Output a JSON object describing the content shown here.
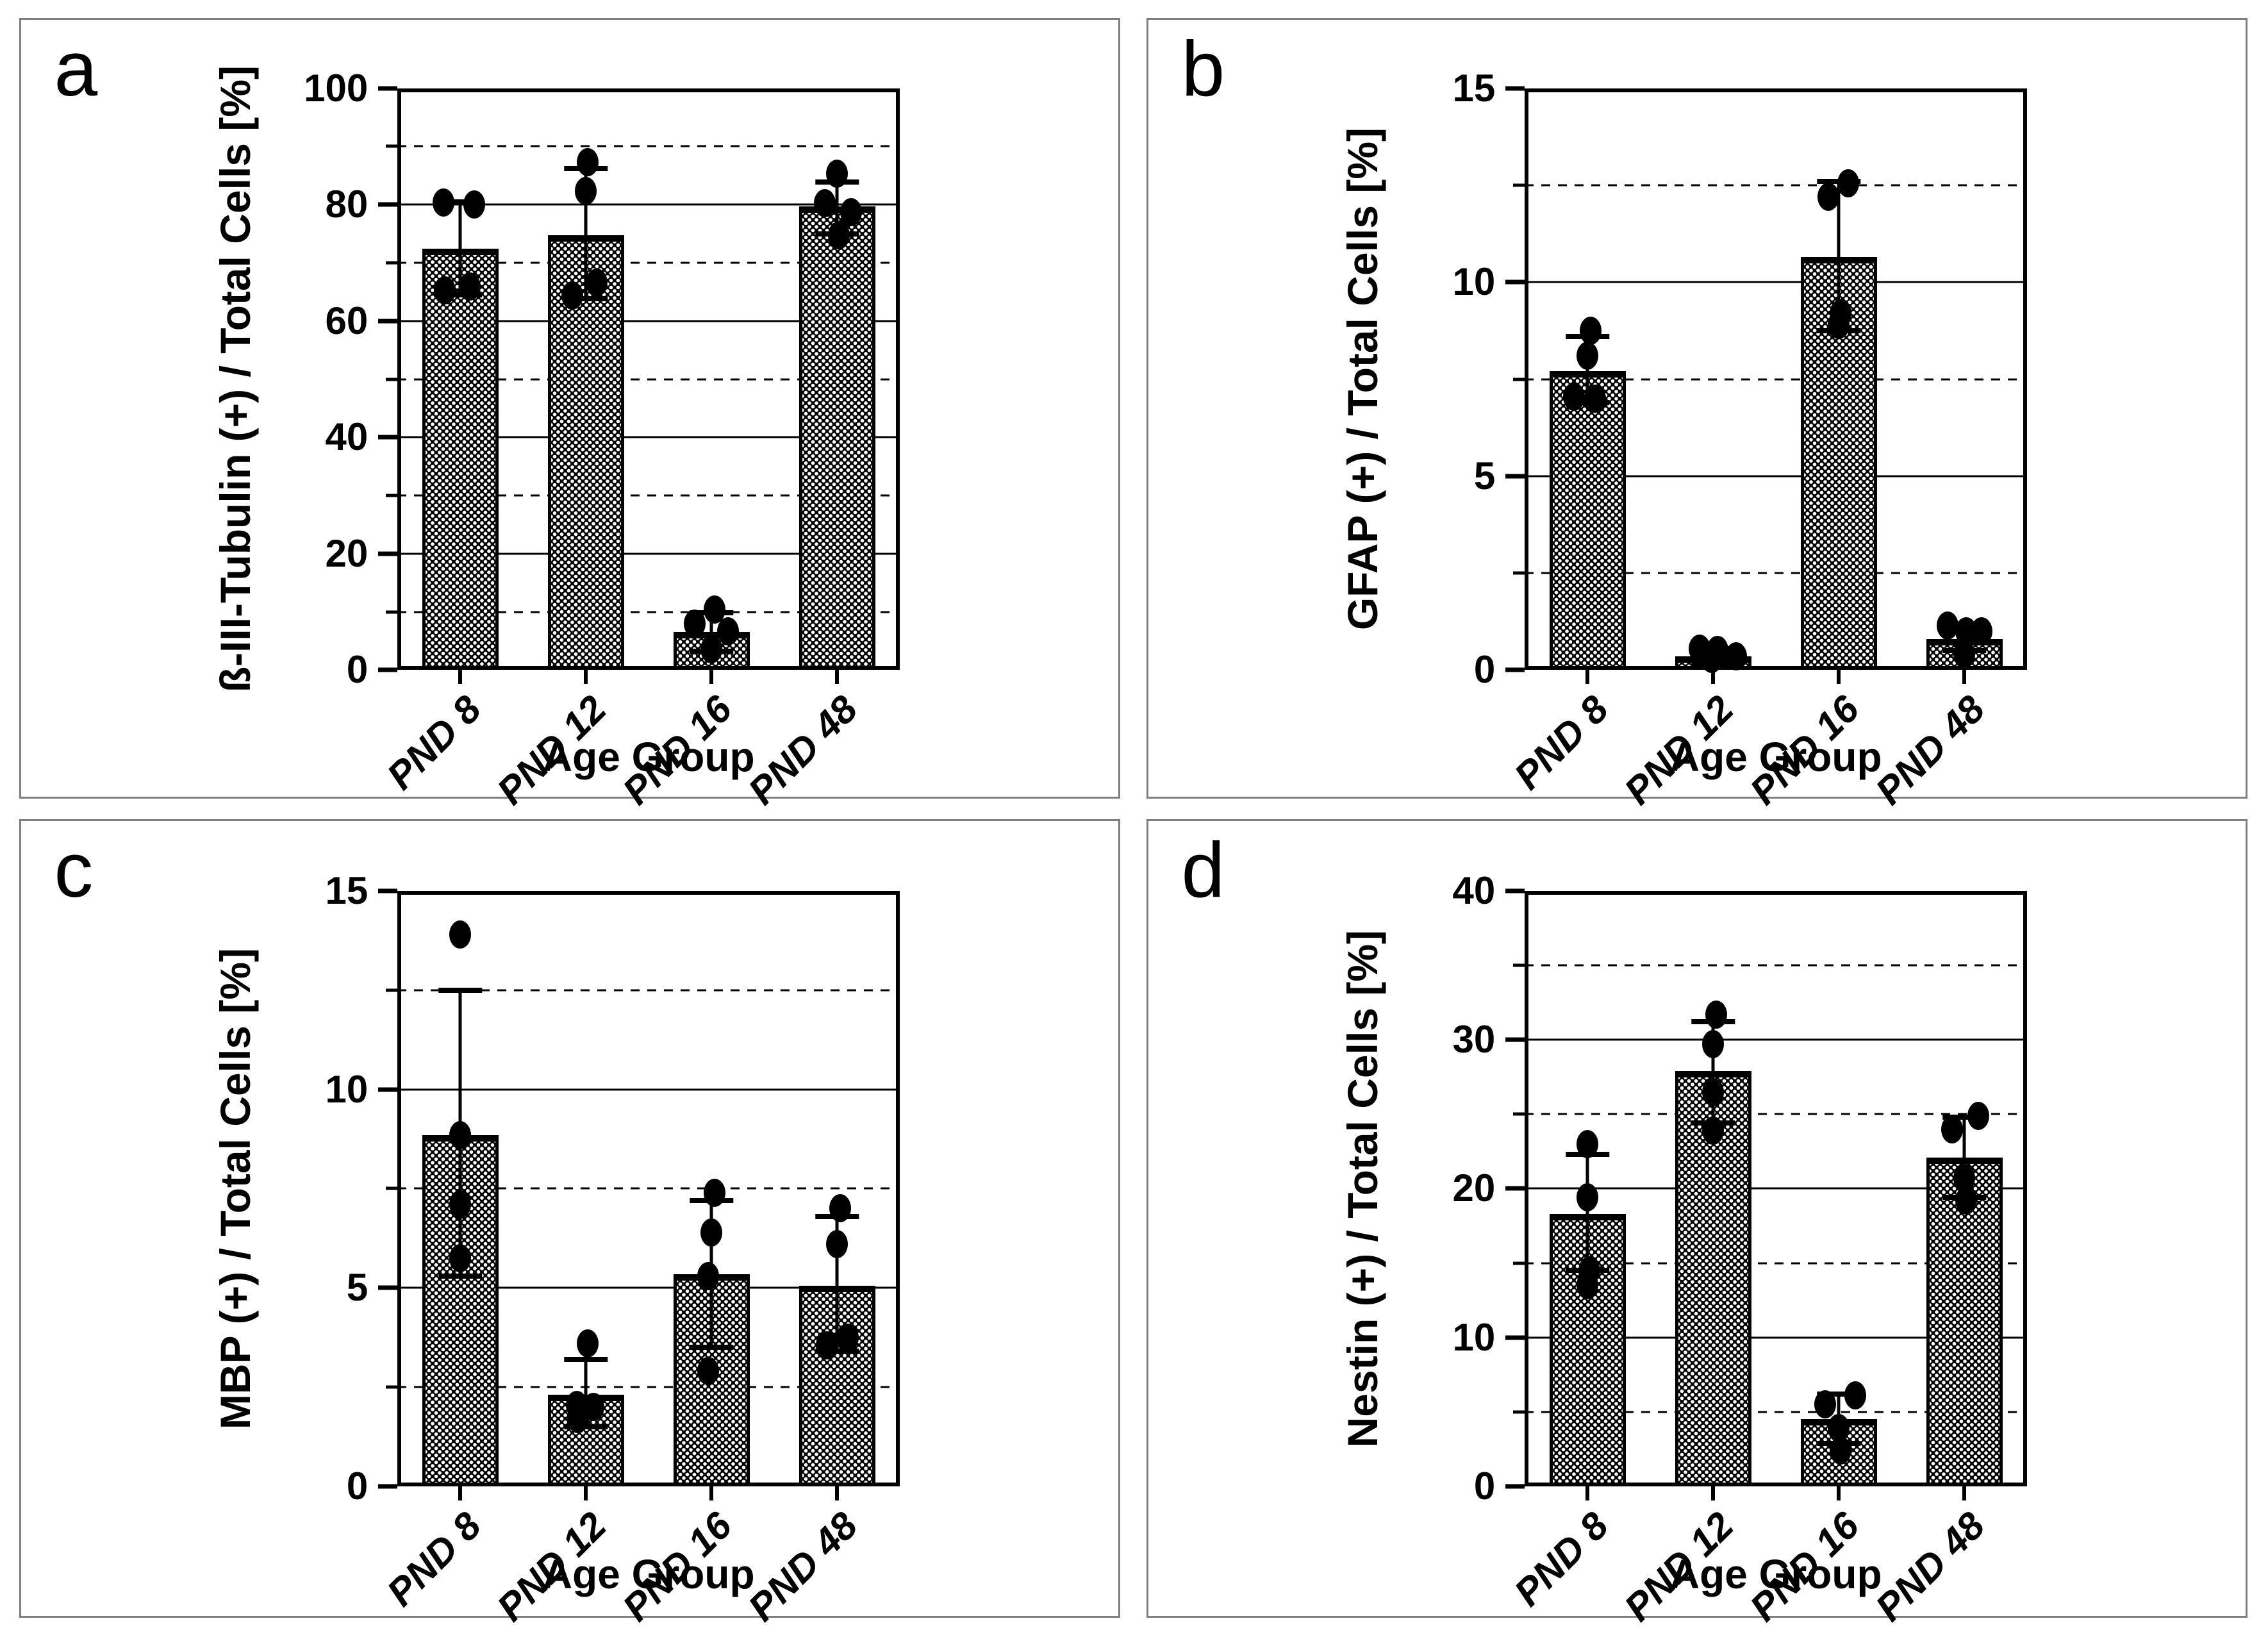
{
  "styles": {
    "bar_fill": "#000000",
    "bar_dot": "#ffffff",
    "axis_color": "#000000",
    "panel_border": "#7f7f7f"
  },
  "chart_data": [
    {
      "type": "bar",
      "letter": "a",
      "ylabel": "ß-III-Tubulin (+) / Total Cells [%]",
      "xlabel": "Age Group",
      "categories": [
        "PND 8",
        "PND 12",
        "PND 16",
        "PND 48"
      ],
      "ylim": [
        0,
        100
      ],
      "ymajor": 20,
      "yminor": 10,
      "grid": "major-solid minor-dashed",
      "legend": "none",
      "bars": [
        {
          "label": "PND 8",
          "mean": 72.4,
          "err": [
            64.5,
            80.5
          ],
          "points": [
            [
              80.3,
              -0.22
            ],
            [
              80.0,
              0.18
            ],
            [
              65.9,
              0.12
            ],
            [
              65.3,
              -0.2
            ]
          ]
        },
        {
          "label": "PND 12",
          "mean": 74.7,
          "err": [
            63.8,
            86.2
          ],
          "points": [
            [
              87.3,
              0.02
            ],
            [
              82.3,
              0.0
            ],
            [
              66.6,
              0.14
            ],
            [
              64.4,
              -0.18
            ]
          ]
        },
        {
          "label": "PND 16",
          "mean": 6.5,
          "err": [
            3.2,
            9.9
          ],
          "points": [
            [
              10.4,
              0.04
            ],
            [
              8.0,
              -0.22
            ],
            [
              6.7,
              0.22
            ],
            [
              3.6,
              0.0
            ]
          ]
        },
        {
          "label": "PND 48",
          "mean": 79.7,
          "err": [
            75.0,
            83.9
          ],
          "points": [
            [
              85.3,
              0.0
            ],
            [
              80.2,
              -0.16
            ],
            [
              78.7,
              0.18
            ],
            [
              74.7,
              0.02
            ]
          ]
        }
      ]
    },
    {
      "type": "bar",
      "letter": "b",
      "ylabel": "GFAP (+) / Total Cells [%]",
      "xlabel": "Age Group",
      "categories": [
        "PND 8",
        "PND 12",
        "PND 16",
        "PND 48"
      ],
      "ylim": [
        0,
        15
      ],
      "ymajor": 5,
      "yminor": 2.5,
      "grid": "major-solid minor-dashed",
      "legend": "none",
      "bars": [
        {
          "label": "PND 8",
          "mean": 7.7,
          "err": [
            6.9,
            8.6
          ],
          "points": [
            [
              8.75,
              0.04
            ],
            [
              8.1,
              0.0
            ],
            [
              7.05,
              -0.18
            ],
            [
              7.0,
              0.1
            ]
          ]
        },
        {
          "label": "PND 12",
          "mean": 0.35,
          "err": [
            0.15,
            0.55
          ],
          "points": [
            [
              0.55,
              -0.18
            ],
            [
              0.52,
              0.06
            ],
            [
              0.35,
              0.3
            ],
            [
              0.28,
              -0.02
            ]
          ]
        },
        {
          "label": "PND 16",
          "mean": 10.65,
          "err": [
            8.75,
            12.6
          ],
          "points": [
            [
              12.55,
              0.12
            ],
            [
              12.2,
              -0.14
            ],
            [
              9.2,
              0.02
            ],
            [
              8.9,
              0.0
            ]
          ]
        },
        {
          "label": "PND 48",
          "mean": 0.8,
          "err": [
            0.5,
            1.1
          ],
          "points": [
            [
              1.15,
              -0.22
            ],
            [
              1.0,
              0.02
            ],
            [
              1.0,
              0.22
            ],
            [
              0.4,
              0.0
            ]
          ]
        }
      ]
    },
    {
      "type": "bar",
      "letter": "c",
      "ylabel": "MBP (+) / Total Cells [%]",
      "xlabel": "Age Group",
      "categories": [
        "PND 8",
        "PND 12",
        "PND 16",
        "PND 48"
      ],
      "ylim": [
        0,
        15
      ],
      "ymajor": 5,
      "yminor": 2.5,
      "grid": "major-solid minor-dashed",
      "legend": "none",
      "bars": [
        {
          "label": "PND 8",
          "mean": 8.85,
          "err": [
            5.3,
            12.5
          ],
          "points": [
            [
              13.9,
              0.0
            ],
            [
              8.85,
              0.0
            ],
            [
              7.1,
              0.0
            ],
            [
              5.75,
              0.0
            ]
          ]
        },
        {
          "label": "PND 12",
          "mean": 2.3,
          "err": [
            1.5,
            3.2
          ],
          "points": [
            [
              3.6,
              0.02
            ],
            [
              2.05,
              -0.12
            ],
            [
              2.0,
              0.1
            ],
            [
              1.7,
              -0.1
            ]
          ]
        },
        {
          "label": "PND 16",
          "mean": 5.35,
          "err": [
            3.5,
            7.2
          ],
          "points": [
            [
              7.4,
              0.04
            ],
            [
              6.4,
              0.0
            ],
            [
              5.3,
              -0.04
            ],
            [
              2.9,
              -0.04
            ]
          ]
        },
        {
          "label": "PND 48",
          "mean": 5.05,
          "err": [
            3.4,
            6.8
          ],
          "points": [
            [
              7.0,
              0.04
            ],
            [
              6.1,
              0.0
            ],
            [
              3.75,
              0.14
            ],
            [
              3.55,
              -0.14
            ]
          ]
        }
      ]
    },
    {
      "type": "bar",
      "letter": "d",
      "ylabel": "Nestin (+) / Total Cells [%]",
      "xlabel": "Age Group",
      "categories": [
        "PND 8",
        "PND 12",
        "PND 16",
        "PND 48"
      ],
      "ylim": [
        0,
        40
      ],
      "ymajor": 10,
      "yminor": 5,
      "grid": "major-solid minor-dashed",
      "legend": "none",
      "bars": [
        {
          "label": "PND 8",
          "mean": 18.3,
          "err": [
            14.5,
            22.3
          ],
          "points": [
            [
              23.0,
              0.0
            ],
            [
              19.4,
              0.0
            ],
            [
              14.5,
              0.02
            ],
            [
              13.5,
              0.0
            ]
          ]
        },
        {
          "label": "PND 12",
          "mean": 27.9,
          "err": [
            24.4,
            31.2
          ],
          "points": [
            [
              31.7,
              0.04
            ],
            [
              29.7,
              0.0
            ],
            [
              26.5,
              0.0
            ],
            [
              23.9,
              0.0
            ]
          ]
        },
        {
          "label": "PND 16",
          "mean": 4.5,
          "err": [
            2.9,
            6.2
          ],
          "points": [
            [
              6.1,
              0.22
            ],
            [
              5.5,
              -0.18
            ],
            [
              3.9,
              0.0
            ],
            [
              2.4,
              0.02
            ]
          ]
        },
        {
          "label": "PND 48",
          "mean": 22.1,
          "err": [
            19.4,
            24.8
          ],
          "points": [
            [
              24.9,
              0.18
            ],
            [
              24.0,
              -0.16
            ],
            [
              20.7,
              0.0
            ],
            [
              19.2,
              0.02
            ]
          ]
        }
      ]
    }
  ]
}
